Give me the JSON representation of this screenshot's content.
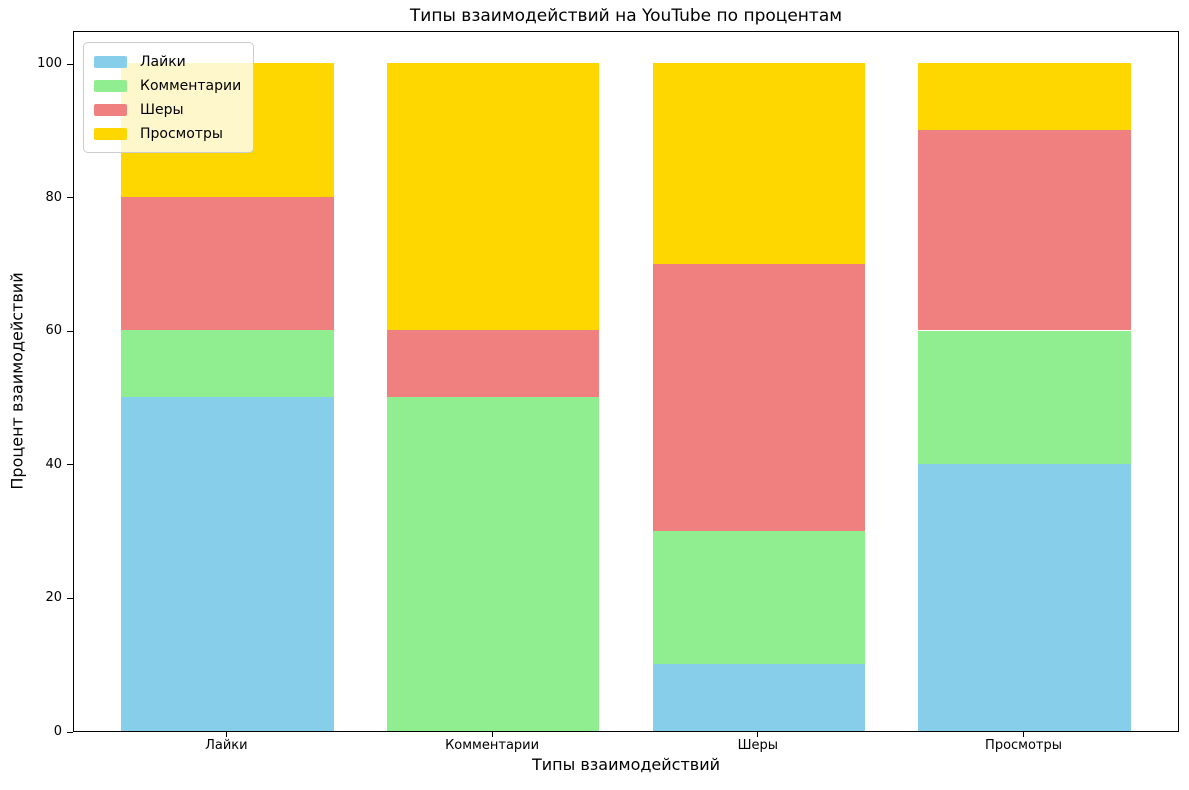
{
  "chart_data": {
    "type": "bar",
    "stacked": true,
    "title": "Типы взаимодействий на YouTube по процентам",
    "xlabel": "Типы взаимодействий",
    "ylabel": "Процент взаимодействий",
    "categories": [
      "Лайки",
      "Комментарии",
      "Шеры",
      "Просмотры"
    ],
    "series": [
      {
        "name": "Лайки",
        "color": "#87CEEB",
        "values": [
          50,
          0,
          10,
          40
        ]
      },
      {
        "name": "Комментарии",
        "color": "#90EE90",
        "values": [
          10,
          50,
          20,
          20
        ]
      },
      {
        "name": "Шеры",
        "color": "#F08080",
        "values": [
          20,
          10,
          40,
          30
        ]
      },
      {
        "name": "Просмотры",
        "color": "#FFD700",
        "values": [
          20,
          40,
          30,
          10
        ]
      }
    ],
    "ylim": [
      0,
      105
    ],
    "yticks": [
      0,
      20,
      40,
      60,
      80,
      100
    ],
    "bar_width": 0.8,
    "grid": false,
    "legend": {
      "position": "upper-left",
      "entries": [
        "Лайки",
        "Комментарии",
        "Шеры",
        "Просмотры"
      ]
    }
  }
}
